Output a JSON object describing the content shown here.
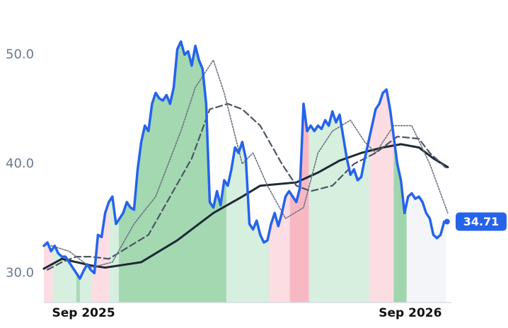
{
  "chart_data": {
    "type": "line",
    "xlim": [
      0,
      113
    ],
    "ylim": [
      27.3,
      53.6
    ],
    "xticks": [
      {
        "value": 11,
        "label": "Sep 2025"
      },
      {
        "value": 101.6,
        "label": "Sep 2026"
      }
    ],
    "yticks": [
      {
        "value": 30,
        "label": "30.0"
      },
      {
        "value": 40,
        "label": "40.0"
      },
      {
        "value": 50,
        "label": "50.0"
      }
    ],
    "grid": false,
    "regimes": [
      {
        "start": 0,
        "end": 2.5,
        "color": "#fbdde3"
      },
      {
        "start": 2.5,
        "end": 9,
        "color": "#d6efdf"
      },
      {
        "start": 9,
        "end": 10,
        "color": "#a8dbb6"
      },
      {
        "start": 10,
        "end": 13.3,
        "color": "#d6efdf"
      },
      {
        "start": 13.3,
        "end": 18.2,
        "color": "#fbdde3"
      },
      {
        "start": 18.2,
        "end": 20.8,
        "color": "#d6efdf"
      },
      {
        "start": 20.8,
        "end": 50.6,
        "color": "#a3d8b1"
      },
      {
        "start": 50.6,
        "end": 62.4,
        "color": "#d6efdf"
      },
      {
        "start": 62.4,
        "end": 68.2,
        "color": "#fbdde3"
      },
      {
        "start": 68.2,
        "end": 73.5,
        "color": "#f7b8c4"
      },
      {
        "start": 73.5,
        "end": 90.2,
        "color": "#d6efdf"
      },
      {
        "start": 90.2,
        "end": 97,
        "color": "#fbdde3"
      },
      {
        "start": 97,
        "end": 100.6,
        "color": "#9fd6ad"
      },
      {
        "start": 100.6,
        "end": 113,
        "color": "#f3f5f8"
      }
    ],
    "series": [
      {
        "color": "#1f2937",
        "style": "solid",
        "width": 3,
        "x": [
          0,
          5,
          13,
          17,
          27,
          37,
          47,
          55,
          60,
          70,
          76,
          82,
          88,
          94,
          99,
          104,
          108,
          112
        ],
        "values": [
          30.4,
          31.3,
          30.7,
          30.5,
          31.0,
          33.0,
          35.5,
          37.0,
          38.0,
          38.3,
          39.2,
          40.3,
          41.0,
          41.5,
          41.8,
          41.5,
          40.5,
          39.7
        ]
      },
      {
        "color": "#4b5563",
        "style": "dashed",
        "width": 2.2,
        "x": [
          1,
          5,
          9,
          13,
          18,
          23,
          29,
          35,
          41,
          46,
          51,
          55,
          60,
          66,
          70,
          74,
          80,
          86,
          92,
          98,
          104,
          107,
          112
        ],
        "values": [
          30.3,
          31.0,
          31.5,
          31.5,
          31.3,
          32.3,
          33.5,
          37.0,
          40.5,
          45.0,
          45.5,
          45.0,
          43.5,
          40.0,
          38.0,
          37.5,
          38.0,
          40.0,
          41.0,
          42.5,
          42.3,
          41.0,
          39.5
        ]
      },
      {
        "color": "#6b7280",
        "style": "dotted",
        "width": 1.6,
        "x": [
          2,
          7,
          13,
          19,
          25,
          31,
          38,
          42,
          47,
          50,
          55,
          58,
          62,
          67,
          72,
          76,
          80,
          85,
          89,
          92,
          97,
          102,
          107,
          112
        ],
        "values": [
          32.5,
          32.0,
          30.5,
          31.0,
          34.5,
          37.0,
          43.0,
          47.0,
          49.5,
          46.5,
          40.0,
          41.0,
          38.0,
          35.0,
          36.0,
          41.0,
          43.0,
          44.0,
          42.0,
          41.0,
          43.5,
          43.5,
          40.0,
          35.5
        ]
      },
      {
        "color": "#2563eb",
        "style": "solid",
        "width": 3.5,
        "last_label": true,
        "values": [
          32.5,
          32.8,
          32.0,
          32.5,
          31.8,
          31.5,
          31.5,
          31.0,
          30.5,
          30.0,
          29.5,
          30.2,
          30.8,
          30.3,
          30.0,
          33.5,
          33.3,
          35.5,
          36.5,
          37.0,
          34.5,
          35.0,
          35.5,
          36.5,
          36.0,
          35.8,
          39.5,
          42.0,
          43.5,
          43.0,
          45.5,
          46.5,
          46.0,
          45.8,
          46.3,
          45.5,
          47.0,
          50.5,
          51.2,
          50.0,
          50.3,
          49.0,
          50.8,
          49.5,
          48.7,
          45.5,
          36.5,
          36.0,
          37.5,
          36.2,
          38.5,
          38.0,
          39.5,
          41.5,
          41.0,
          42.0,
          40.5,
          34.5,
          34.0,
          34.8,
          33.5,
          32.8,
          33.0,
          34.5,
          35.5,
          34.3,
          35.5,
          37.0,
          37.5,
          37.0,
          36.5,
          37.8,
          45.5,
          43.0,
          43.5,
          43.0,
          43.5,
          43.2,
          44.0,
          43.5,
          44.8,
          43.8,
          44.5,
          42.5,
          40.5,
          39.0,
          39.5,
          38.5,
          38.8,
          40.5,
          42.0,
          43.5,
          45.0,
          45.5,
          46.5,
          46.8,
          45.0,
          42.5,
          40.0,
          38.5,
          35.5,
          37.0,
          37.3,
          36.8,
          37.0,
          36.5,
          35.5,
          35.0,
          33.5,
          33.2,
          33.5,
          34.71
        ]
      }
    ]
  }
}
